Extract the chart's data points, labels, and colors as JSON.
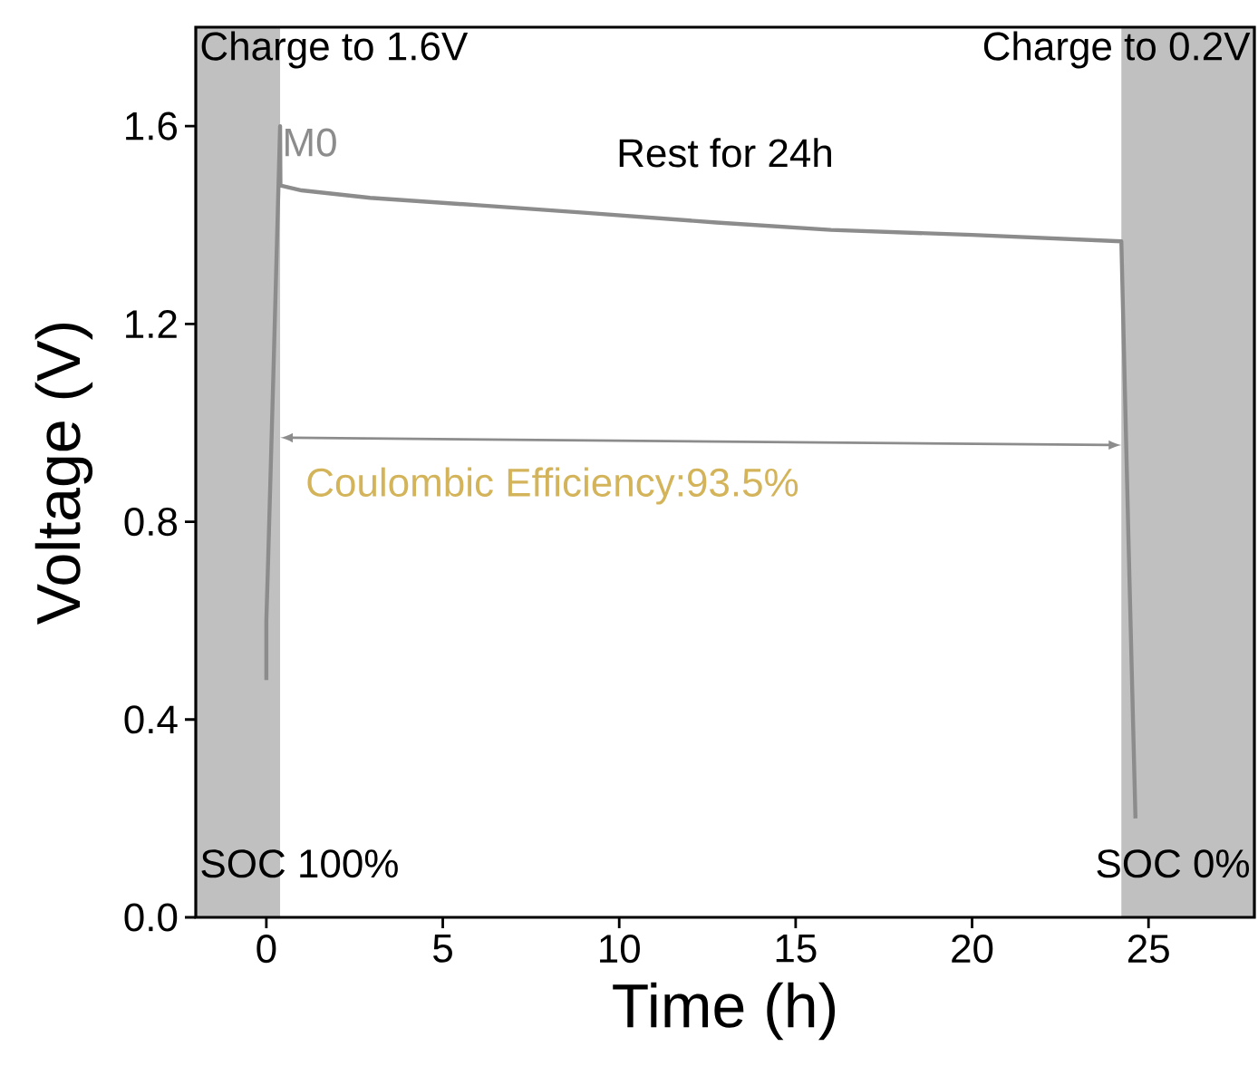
{
  "chart_data": {
    "type": "line",
    "xlabel": "Time (h)",
    "ylabel": "Voltage (V)",
    "series": [
      {
        "name": "M0",
        "color": "#8c8c8c",
        "x": [
          0,
          0,
          0.05,
          0.2,
          0.39,
          0.4,
          1,
          2.94,
          6,
          9,
          12.76,
          16,
          20,
          24.23,
          24.43,
          24.63
        ],
        "values": [
          0.48,
          0.6,
          0.72,
          1.1,
          1.6,
          1.48,
          1.47,
          1.455,
          1.44,
          1.425,
          1.405,
          1.39,
          1.38,
          1.367,
          0.77,
          0.2
        ]
      }
    ],
    "xlim": [
      -2,
      28
    ],
    "ylim": [
      0,
      1.8
    ],
    "xticks": [
      0,
      5,
      10,
      15,
      20,
      25
    ],
    "yticks": [
      {
        "value": 0,
        "label": "0.0"
      },
      {
        "value": 0.4,
        "label": "0.4"
      },
      {
        "value": 0.8,
        "label": "0.8"
      },
      {
        "value": 1.2,
        "label": "1.2"
      },
      {
        "value": 1.6,
        "label": "1.6"
      }
    ],
    "bands": [
      {
        "axis": "x",
        "from": -2,
        "to": 0.39,
        "color": "#c0c0c0"
      },
      {
        "axis": "x",
        "from": 24.23,
        "to": 28,
        "color": "#c0c0c0"
      }
    ],
    "annotations": [
      "Charge to 1.6V",
      "Charge to 0.2V",
      "Rest for 24h",
      "Coulombic Efficiency:93.5%",
      "SOC 100%",
      "SOC 0%"
    ],
    "grid": false,
    "marker": "none",
    "line_style": "solid"
  }
}
